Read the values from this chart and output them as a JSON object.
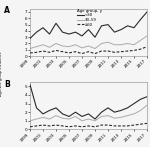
{
  "years": [
    1999,
    2000,
    2001,
    2002,
    2003,
    2004,
    2005,
    2006,
    2007,
    2008,
    2009,
    2010,
    2011,
    2012,
    2013,
    2014,
    2015,
    2016,
    2017
  ],
  "male": {
    "lt30": [
      2.8,
      3.8,
      4.5,
      3.5,
      5.2,
      3.8,
      3.5,
      3.8,
      3.2,
      4.2,
      3.0,
      4.8,
      5.0,
      3.8,
      4.2,
      4.8,
      4.5,
      5.8,
      7.0
    ],
    "30_59": [
      1.2,
      1.5,
      1.8,
      1.4,
      2.0,
      1.6,
      1.5,
      1.8,
      1.3,
      1.6,
      1.2,
      2.0,
      2.2,
      1.8,
      1.8,
      2.0,
      1.8,
      2.5,
      3.2
    ],
    "ge60": [
      0.5,
      0.6,
      0.8,
      0.6,
      0.9,
      0.7,
      0.5,
      0.7,
      0.4,
      0.7,
      0.4,
      0.8,
      0.8,
      0.6,
      0.7,
      0.8,
      0.9,
      1.1,
      1.5
    ]
  },
  "female": {
    "lt30": [
      5.2,
      2.5,
      1.8,
      2.2,
      2.5,
      1.8,
      1.5,
      2.0,
      1.5,
      1.8,
      1.2,
      2.0,
      2.5,
      2.0,
      2.2,
      2.5,
      3.0,
      3.5,
      3.8
    ],
    "30_59": [
      1.0,
      1.2,
      1.4,
      1.2,
      1.6,
      1.3,
      1.2,
      1.5,
      1.0,
      1.2,
      1.0,
      1.5,
      1.6,
      1.3,
      1.4,
      1.6,
      1.8,
      2.2,
      2.8
    ],
    "ge60": [
      0.3,
      0.4,
      0.5,
      0.4,
      0.5,
      0.4,
      0.3,
      0.4,
      0.3,
      0.4,
      0.3,
      0.5,
      0.5,
      0.4,
      0.4,
      0.4,
      0.5,
      0.6,
      0.7
    ]
  },
  "color_lt30": "#2a2a2a",
  "color_3059": "#aaaaaa",
  "color_ge60": "#2a2a2a",
  "ylabel": "Age/sex group incidence",
  "xtick_years": [
    1999,
    2001,
    2003,
    2005,
    2007,
    2009,
    2011,
    2013,
    2015,
    2017
  ],
  "ylim_a": [
    0,
    7.5
  ],
  "ylim_b": [
    0,
    5.5
  ],
  "yticks_a": [
    0,
    1,
    2,
    3,
    4,
    5,
    6,
    7
  ],
  "yticks_b": [
    0,
    1,
    2,
    3,
    4,
    5
  ],
  "legend_title": "Age group, y",
  "legend_entries": [
    "<30",
    "30–59",
    "≥60"
  ],
  "bg_color": "#f0f0f0"
}
